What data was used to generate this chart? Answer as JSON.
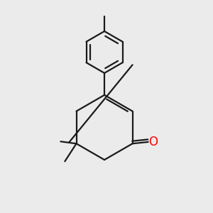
{
  "background_color": "#ebebeb",
  "line_color": "#1a1a1a",
  "oxygen_color": "#ff0000",
  "line_width": 1.6,
  "dbo_ring": 0.012,
  "dbo_benzene": 0.018,
  "dbo_ketone": 0.012,
  "figsize": [
    3.0,
    3.0
  ],
  "dpi": 100
}
